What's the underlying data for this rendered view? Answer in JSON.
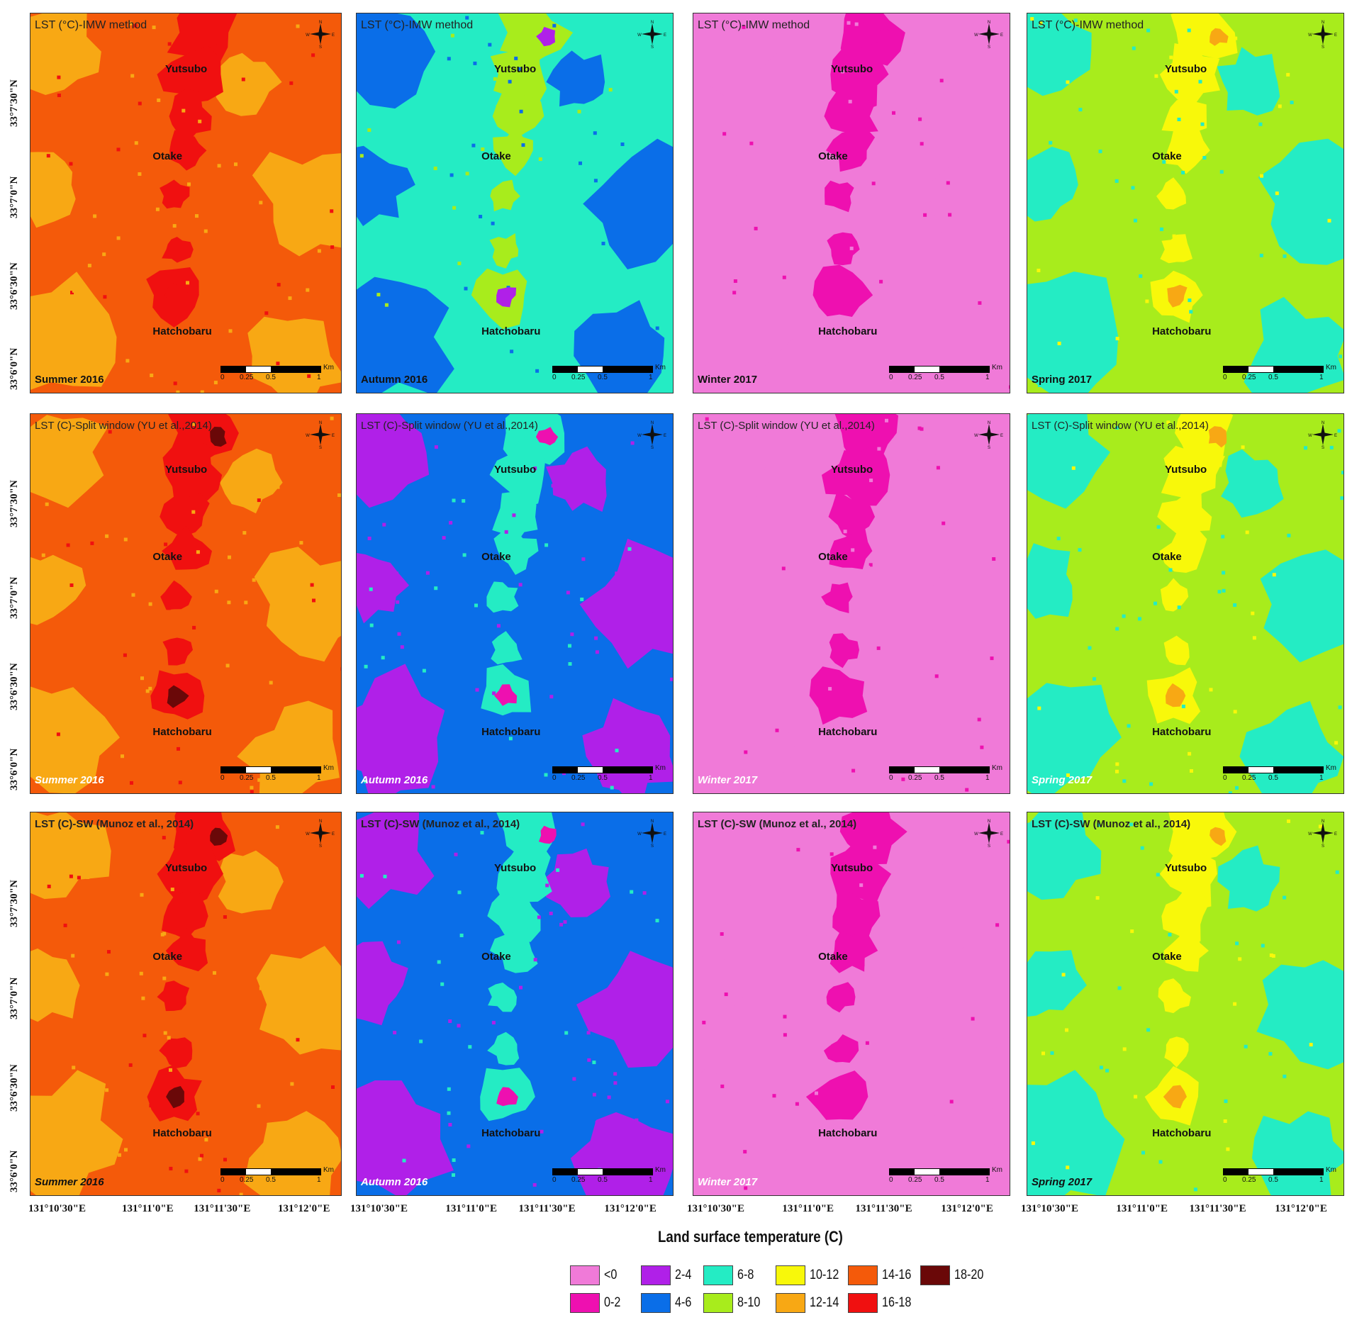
{
  "legend": {
    "title": "Land surface temperature (C)",
    "items": [
      {
        "label": "<0",
        "color": "#f07ad8"
      },
      {
        "label": "0-2",
        "color": "#ee10b0"
      },
      {
        "label": "2-4",
        "color": "#b020e8"
      },
      {
        "label": "4-6",
        "color": "#0a6ee8"
      },
      {
        "label": "6-8",
        "color": "#24ecc4"
      },
      {
        "label": "8-10",
        "color": "#a8ec1c"
      },
      {
        "label": "10-12",
        "color": "#f8f80a"
      },
      {
        "label": "12-14",
        "color": "#f8a814"
      },
      {
        "label": "14-16",
        "color": "#f45a0a"
      },
      {
        "label": "16-18",
        "color": "#f01010"
      },
      {
        "label": "18-20",
        "color": "#6a0808"
      }
    ]
  },
  "axes": {
    "latitude_labels": [
      "33°7'30\"N",
      "33°7'0\"N",
      "33°6'30\"N",
      "33°6'0\"N"
    ],
    "longitude_labels": [
      "131°10'30\"E",
      "131°11'0\"E",
      "131°11'30\"E",
      "131°12'0\"E"
    ]
  },
  "places": {
    "yutsubo": "Yutsubo",
    "otake": "Otake",
    "hatchobaru": "Hatchobaru"
  },
  "compass": {
    "n": "N",
    "s": "S",
    "e": "E",
    "w": "W"
  },
  "scale": {
    "l0": "0",
    "l1": "0.25",
    "l2": "0.5",
    "l3": "1",
    "unit": "Km"
  },
  "rows": [
    {
      "method": "LST (°C)-IMW method",
      "panels": [
        {
          "season": "Summer 2016",
          "base": "#f45a0a",
          "secondary": "#f8a814",
          "hot": "#f01010",
          "spot": "#f01010"
        },
        {
          "season": "Autumn 2016",
          "base": "#24ecc4",
          "secondary": "#0a6ee8",
          "hot": "#a8ec1c",
          "spot": "#b020e8"
        },
        {
          "season": "Winter 2017",
          "base": "#f07ad8",
          "secondary": "#f07ad8",
          "hot": "#ee10b0",
          "spot": "#ee10b0"
        },
        {
          "season": "Spring 2017",
          "base": "#a8ec1c",
          "secondary": "#24ecc4",
          "hot": "#f8f80a",
          "spot": "#f8a814"
        }
      ]
    },
    {
      "method": "LST (C)-Split window (YU et al.,2014)",
      "panels": [
        {
          "season": "Summer 2016",
          "base": "#f45a0a",
          "secondary": "#f8a814",
          "hot": "#f01010",
          "spot": "#6a0808"
        },
        {
          "season": "Autumn 2016",
          "base": "#0a6ee8",
          "secondary": "#b020e8",
          "hot": "#24ecc4",
          "spot": "#ee10b0"
        },
        {
          "season": "Winter 2017",
          "base": "#f07ad8",
          "secondary": "#f07ad8",
          "hot": "#ee10b0",
          "spot": "#ee10b0"
        },
        {
          "season": "Spring 2017",
          "base": "#a8ec1c",
          "secondary": "#24ecc4",
          "hot": "#f8f80a",
          "spot": "#f8a814"
        }
      ]
    },
    {
      "method": "LST (C)-SW (Munoz et al., 2014)",
      "panels": [
        {
          "season": "Summer 2016",
          "base": "#f45a0a",
          "secondary": "#f8a814",
          "hot": "#f01010",
          "spot": "#6a0808"
        },
        {
          "season": "Autumn 2016",
          "base": "#0a6ee8",
          "secondary": "#b020e8",
          "hot": "#24ecc4",
          "spot": "#ee10b0"
        },
        {
          "season": "Winter 2017",
          "base": "#f07ad8",
          "secondary": "#f07ad8",
          "hot": "#ee10b0",
          "spot": "#ee10b0"
        },
        {
          "season": "Spring 2017",
          "base": "#a8ec1c",
          "secondary": "#24ecc4",
          "hot": "#f8f80a",
          "spot": "#f8a814"
        }
      ]
    }
  ]
}
